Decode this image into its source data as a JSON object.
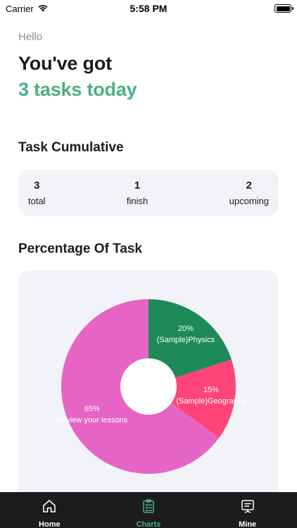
{
  "status_bar": {
    "carrier": "Carrier",
    "time": "5:58 PM"
  },
  "header": {
    "greeting": "Hello",
    "headline": "You've got",
    "tasks_today": "3 tasks today"
  },
  "cumulative": {
    "title": "Task Cumulative",
    "stats": [
      {
        "value": "3",
        "label": "total"
      },
      {
        "value": "1",
        "label": "finish"
      },
      {
        "value": "2",
        "label": "upcoming"
      }
    ]
  },
  "percentage": {
    "title": "Percentage Of Task"
  },
  "chart_data": {
    "type": "pie",
    "title": "",
    "slices": [
      {
        "label": "(Sample)Physics",
        "value": 20,
        "percent_label": "20%",
        "color": "#1e8a5a"
      },
      {
        "label": "(Sample)Geography",
        "value": 15,
        "percent_label": "15%",
        "color": "#ff4577"
      },
      {
        "label": "Review your lessons",
        "value": 65,
        "percent_label": "65%",
        "color": "#e664c6"
      }
    ]
  },
  "tabs": [
    {
      "label": "Home",
      "icon": "home-icon",
      "active": false
    },
    {
      "label": "Charts",
      "icon": "clipboard-icon",
      "active": true
    },
    {
      "label": "Mine",
      "icon": "presentation-icon",
      "active": false
    }
  ],
  "colors": {
    "accent": "#4caf85",
    "card": "#f1f3f8",
    "tab_bar": "#1c1c1c"
  }
}
